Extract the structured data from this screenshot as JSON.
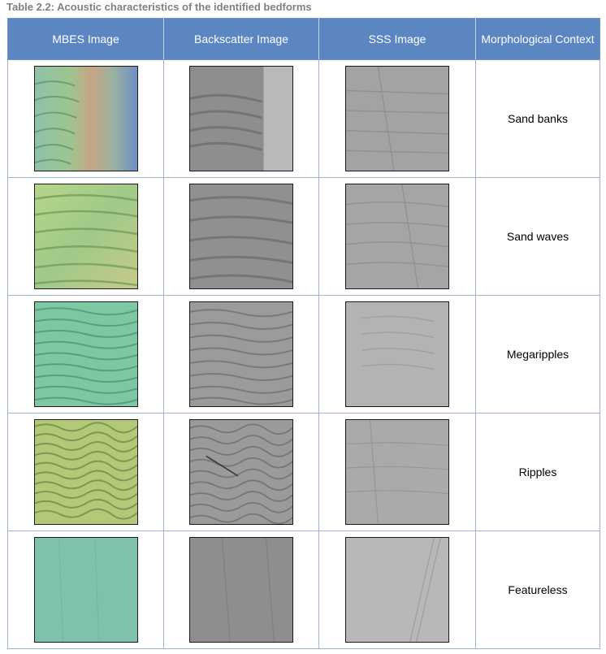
{
  "caption": "Table 2.2: Acoustic characteristics of the identified bedforms",
  "headers": {
    "mbes": "MBES Image",
    "backscatter": "Backscatter Image",
    "sss": "SSS Image",
    "context": "Morphological Context"
  },
  "rows": [
    {
      "context": "Sand banks"
    },
    {
      "context": "Sand waves"
    },
    {
      "context": "Megaripples"
    },
    {
      "context": "Ripples"
    },
    {
      "context": "Featureless"
    }
  ],
  "colors": {
    "header_bg": "#5b86c2",
    "header_text": "#ffffff",
    "caption_text": "#808080",
    "grid_border": "#9fb4d4"
  }
}
